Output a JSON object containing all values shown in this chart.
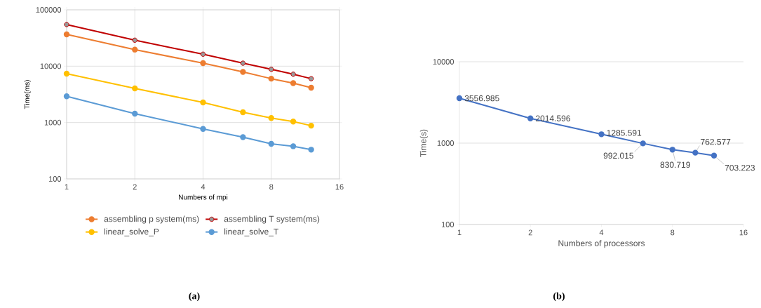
{
  "chart_data": [
    {
      "type": "line",
      "xlabel": "Numbers of mpi",
      "ylabel": "Time(ms)",
      "log": "xy",
      "grid": true,
      "legend": "bottom",
      "marker": "circle",
      "x": [
        1,
        2,
        4,
        6,
        8,
        10,
        12
      ],
      "xlim": [
        1,
        16
      ],
      "xticks": [
        1,
        2,
        4,
        8,
        16
      ],
      "ylim": [
        100,
        100000
      ],
      "yticks": [
        100,
        1000,
        10000,
        100000
      ],
      "series": [
        {
          "name": "assembling p system(ms)",
          "color": "#ed7d31",
          "values": [
            36600,
            19700,
            11300,
            7900,
            6000,
            5000,
            4150
          ]
        },
        {
          "name": "assembling T system(ms)",
          "color": "#c00000",
          "values": [
            54800,
            28900,
            16300,
            11300,
            8800,
            7200,
            6000
          ]
        },
        {
          "name": "linear_solve_P",
          "color": "#ffc000",
          "values": [
            7360,
            4040,
            2270,
            1520,
            1200,
            1040,
            880
          ]
        },
        {
          "name": "linear_solve_T",
          "color": "#5b9bd5",
          "values": [
            2920,
            1440,
            770,
            550,
            420,
            380,
            330
          ]
        }
      ],
      "annotations": [
        "(a)"
      ]
    },
    {
      "type": "line",
      "xlabel": "Numbers of processors",
      "ylabel": "Time(s)",
      "log": "xy",
      "grid": "y",
      "marker": "circle",
      "data_labels": true,
      "x": [
        1,
        2,
        4,
        6,
        8,
        10,
        12
      ],
      "xlim": [
        1,
        16
      ],
      "xticks": [
        1,
        2,
        4,
        8,
        16
      ],
      "ylim": [
        100,
        10000
      ],
      "yticks": [
        100,
        1000,
        10000
      ],
      "series": [
        {
          "color": "#4472c4",
          "values": [
            3556.985,
            2014.596,
            1285.591,
            992.015,
            830.719,
            762.577,
            703.223
          ]
        }
      ],
      "annotations": [
        "(b)"
      ]
    }
  ]
}
